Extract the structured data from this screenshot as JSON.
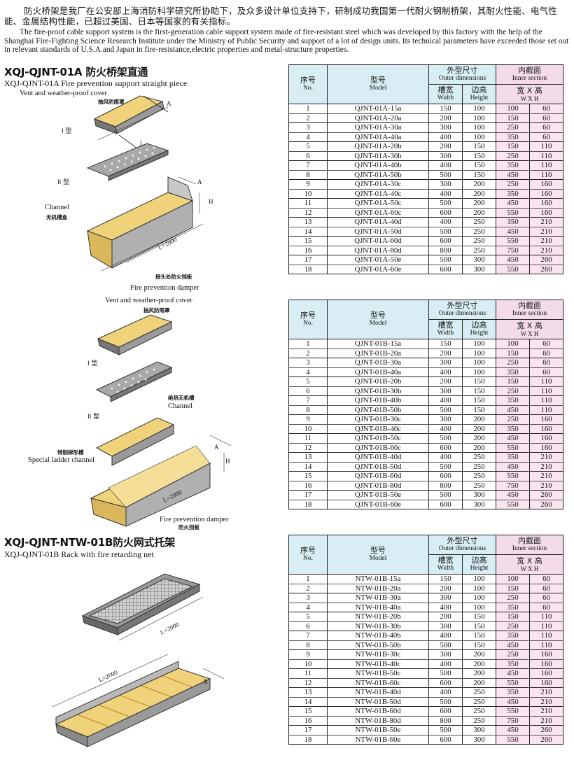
{
  "intro": {
    "zh": "防火桥架是我厂在公安部上海消防科学研究所协助下，及众多设计单位支持下，研制成功我国第一代耐火钢制桥架，其耐火性能、电气性能、金属结构性能，已超过美国、日本等国家的有关指标。",
    "en": "The fire-proof cable support system is the  first-generation cable support system made of fire-resistant steel which was developed by this factory with the help of the Shanghai Fire-Fighting Science Research Institute under the Ministry of Public Security and support of a lot of design units. Its technical parameters have exceeded those set out in relevant standards of U.S.A.and Japan in fire-resistance,electric properties and metal-structure properties."
  },
  "sections": {
    "a": {
      "title": "XQJ-QJNT-01A 防火桥架直通",
      "subtitle": "XQJ-QJNT-01A Fire prevention support straight piece"
    },
    "c": {
      "title": "XQJ-QJNT-NTW-01B防火网式托架",
      "subtitle": "XQJ-QJNT-01B Rack with fire retarding net"
    }
  },
  "figures": {
    "fig1": {
      "cover_en": "Vent and weather-proof cover",
      "cover_zh": "抽风防雨罩",
      "type1": "I 型",
      "type2": "II 型",
      "channel_en": "Channel",
      "channel_zh": "无机槽盒",
      "damper_zh": "接头处防火挡板",
      "damper_en": "Fire prevention damper",
      "dim_a": "A",
      "dim_h": "H",
      "dim_l": "L",
      "dim_len": "L=2000"
    },
    "fig2": {
      "cover_en": "Vent and weather-proof cover",
      "cover_zh": "抽风防雨罩",
      "type1": "I 型",
      "type2": "II 型",
      "channel_zh": "绝热无机槽",
      "channel_en": "Channel",
      "ladder_zh": "特制梯形槽",
      "ladder_en": "Special ladder channel",
      "damper_en": "Fire prevention damper",
      "damper_zh": "防火挡板",
      "dim_a": "A",
      "dim_h": "H",
      "dim_len": "L=2000"
    },
    "fig3": {
      "dim_len": "L=2000",
      "dim_len2": "L=2000",
      "dim_a": "A"
    }
  },
  "table_headers": {
    "no_zh": "序号",
    "no_en": "No.",
    "model_zh": "型号",
    "model_en": "Model",
    "outer_zh": "外型尺寸",
    "outer_en": "Outer dimensions",
    "inner_zh": "内截面",
    "inner_en": "Inner section",
    "width_zh": "槽宽",
    "width_en": "Width",
    "height_zh": "边高",
    "height_en": "Height",
    "wh_zh": "宽 X 高",
    "wh_en": "W X H"
  },
  "tables": {
    "t1": [
      [
        "1",
        "QJNT-01A-15a",
        "150",
        "100",
        "100",
        "60"
      ],
      [
        "2",
        "QJNT-01A-20a",
        "200",
        "100",
        "150",
        "60"
      ],
      [
        "3",
        "QJNT-01A-30a",
        "300",
        "100",
        "250",
        "60"
      ],
      [
        "4",
        "QJNT-01A-40a",
        "400",
        "100",
        "350",
        "60"
      ],
      [
        "5",
        "QJNT-01A-20b",
        "200",
        "150",
        "150",
        "110"
      ],
      [
        "6",
        "QJNT-01A-30b",
        "300",
        "150",
        "250",
        "110"
      ],
      [
        "7",
        "QJNT-01A-40b",
        "400",
        "150",
        "350",
        "110"
      ],
      [
        "8",
        "QJNT-01A-50b",
        "500",
        "150",
        "450",
        "110"
      ],
      [
        "9",
        "QJNT-01A-30c",
        "300",
        "200",
        "250",
        "160"
      ],
      [
        "10",
        "QJNT-01A-40c",
        "400",
        "200",
        "350",
        "160"
      ],
      [
        "11",
        "QJNT-01A-50c",
        "500",
        "200",
        "450",
        "160"
      ],
      [
        "12",
        "QJNT-01A-60c",
        "600",
        "200",
        "550",
        "160"
      ],
      [
        "13",
        "QJNT-01A-40d",
        "400",
        "250",
        "350",
        "210"
      ],
      [
        "14",
        "QJNT-01A-50d",
        "500",
        "250",
        "450",
        "210"
      ],
      [
        "15",
        "QJNT-01A-60d",
        "600",
        "250",
        "550",
        "210"
      ],
      [
        "16",
        "QJNT-01A-80d",
        "800",
        "250",
        "750",
        "210"
      ],
      [
        "17",
        "QJNT-01A-50e",
        "500",
        "300",
        "450",
        "260"
      ],
      [
        "18",
        "QJNT-01A-60e",
        "600",
        "300",
        "550",
        "260"
      ]
    ],
    "t2": [
      [
        "1",
        "QJNT-01B-15a",
        "150",
        "100",
        "100",
        "60"
      ],
      [
        "2",
        "QJNT-01B-20a",
        "200",
        "100",
        "150",
        "60"
      ],
      [
        "3",
        "QJNT-01B-30a",
        "300",
        "100",
        "250",
        "60"
      ],
      [
        "4",
        "QJNT-01B-40a",
        "400",
        "100",
        "350",
        "60"
      ],
      [
        "5",
        "QJNT-01B-20b",
        "200",
        "150",
        "150",
        "110"
      ],
      [
        "6",
        "QJNT-01B-30b",
        "300",
        "150",
        "250",
        "110"
      ],
      [
        "7",
        "QJNT-01B-40b",
        "400",
        "150",
        "350",
        "110"
      ],
      [
        "8",
        "QJNT-01B-50b",
        "500",
        "150",
        "450",
        "110"
      ],
      [
        "9",
        "QJNT-01B-30c",
        "300",
        "200",
        "250",
        "160"
      ],
      [
        "10",
        "QJNT-01B-40c",
        "400",
        "200",
        "350",
        "160"
      ],
      [
        "11",
        "QJNT-01B-50c",
        "500",
        "200",
        "450",
        "160"
      ],
      [
        "12",
        "QJNT-01B-60c",
        "600",
        "200",
        "550",
        "160"
      ],
      [
        "13",
        "QJNT-01B-40d",
        "400",
        "250",
        "350",
        "210"
      ],
      [
        "14",
        "QJNT-01B-50d",
        "500",
        "250",
        "450",
        "210"
      ],
      [
        "15",
        "QJNT-01B-60d",
        "600",
        "250",
        "550",
        "210"
      ],
      [
        "16",
        "QJNT-01B-80d",
        "800",
        "250",
        "750",
        "210"
      ],
      [
        "17",
        "QJNT-01B-50e",
        "500",
        "300",
        "450",
        "260"
      ],
      [
        "18",
        "QJNT-01B-60e",
        "600",
        "300",
        "550",
        "260"
      ]
    ],
    "t3": [
      [
        "1",
        "NTW-01B-15a",
        "150",
        "100",
        "100",
        "60"
      ],
      [
        "2",
        "NTW-01B-20a",
        "200",
        "100",
        "150",
        "60"
      ],
      [
        "3",
        "NTW-01B-30a",
        "300",
        "100",
        "250",
        "60"
      ],
      [
        "4",
        "NTW-01B-40a",
        "400",
        "100",
        "350",
        "60"
      ],
      [
        "5",
        "NTW-01B-20b",
        "200",
        "150",
        "150",
        "110"
      ],
      [
        "6",
        "NTW-01B-30b",
        "300",
        "150",
        "250",
        "110"
      ],
      [
        "7",
        "NTW-01B-40b",
        "400",
        "150",
        "350",
        "110"
      ],
      [
        "8",
        "NTW-01B-50b",
        "500",
        "150",
        "450",
        "110"
      ],
      [
        "9",
        "NTW-01B-30c",
        "300",
        "200",
        "250",
        "160"
      ],
      [
        "10",
        "NTW-01B-40c",
        "400",
        "200",
        "350",
        "160"
      ],
      [
        "11",
        "NTW-01B-50c",
        "500",
        "200",
        "450",
        "160"
      ],
      [
        "12",
        "NTW-01B-60c",
        "600",
        "200",
        "550",
        "160"
      ],
      [
        "13",
        "NTW-01B-40d",
        "400",
        "250",
        "350",
        "210"
      ],
      [
        "14",
        "NTW-01B-50d",
        "500",
        "250",
        "450",
        "210"
      ],
      [
        "15",
        "NTW-01B-60d",
        "600",
        "250",
        "550",
        "210"
      ],
      [
        "16",
        "NTW-01B-80d",
        "800",
        "250",
        "750",
        "210"
      ],
      [
        "17",
        "NTW-01B-50e",
        "500",
        "300",
        "450",
        "260"
      ],
      [
        "18",
        "NTW-01B-60e",
        "600",
        "300",
        "550",
        "260"
      ]
    ]
  },
  "colors": {
    "header_blue": "#d8eef4",
    "header_pink": "#f3dbe9",
    "cell_pink": "#fbe4f1",
    "fireproof_yellow": "#f0d27a",
    "steel_gray": "#9a9a9a"
  }
}
